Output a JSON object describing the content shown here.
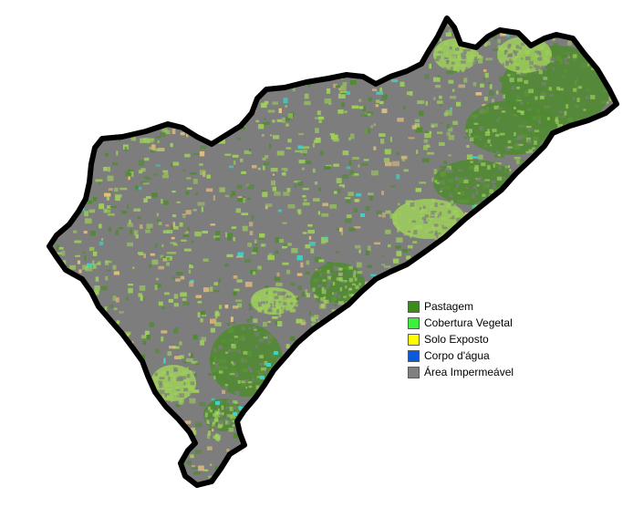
{
  "legend": {
    "items": [
      {
        "label": "Pastagem",
        "color": "#3a8c1c"
      },
      {
        "label": "Cobertura Vegetal",
        "color": "#3cf03c"
      },
      {
        "label": "Solo Exposto",
        "color": "#ffff00"
      },
      {
        "label": "Corpo d'água",
        "color": "#0a5adc"
      },
      {
        "label": "Área Impermeável",
        "color": "#808080"
      }
    ]
  },
  "map": {
    "boundary_color": "#000000",
    "base_color": "#7d7d7d",
    "texture_colors": {
      "light_vegetation": "#9fcf5c",
      "forest": "#4f8a30",
      "bare_soil": "#e8c07a",
      "water": "#37d6c8"
    }
  }
}
